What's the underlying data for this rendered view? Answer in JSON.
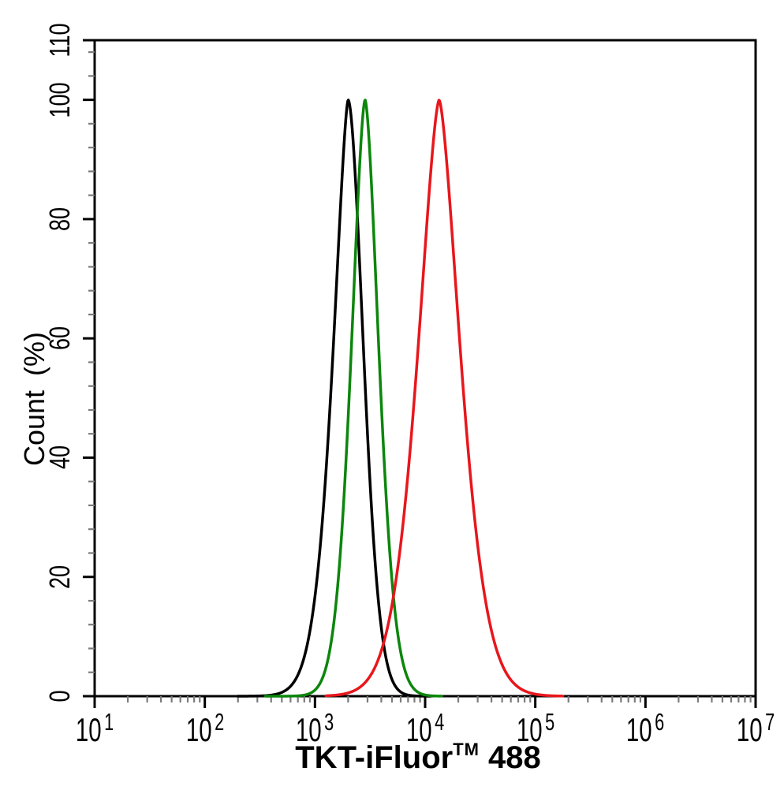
{
  "figure": {
    "background": "#ffffff"
  },
  "chart_data": {
    "type": "line",
    "variant": "flow-cytometry-histogram-overlay",
    "title": "",
    "xlabel": "TKT-iFluor™ 488",
    "xlabel_parts": {
      "main": "TKT-iFluor",
      "tm": "TM",
      "suffix": "488"
    },
    "ylabel": "Count (%)",
    "x_scale": "log10",
    "x_tick_base": "10",
    "x_ticks_exponents": [
      1,
      2,
      3,
      4,
      5,
      6,
      7
    ],
    "xlim": [
      10,
      10000000
    ],
    "y_ticks": [
      0,
      20,
      40,
      60,
      80,
      100,
      110
    ],
    "y_minor_step": 4,
    "ylim": [
      0,
      110
    ],
    "grid": false,
    "legend": "none",
    "axis_color": "#000000",
    "minor_tick_color": "#7b7b7b",
    "series": [
      {
        "name": "black-curve",
        "color": "#000000",
        "peak_x": 2000,
        "peak_y": 100,
        "fwhm_decades": 0.32,
        "shape_left_exp": 1.5,
        "shape_right_exp": 1.8,
        "span_log10": [
          2.3,
          4.05
        ]
      },
      {
        "name": "green-curve",
        "color": "#0c860c",
        "peak_x": 2850,
        "peak_y": 100,
        "fwhm_decades": 0.29,
        "shape_left_exp": 1.65,
        "shape_right_exp": 1.65,
        "span_log10": [
          2.55,
          4.15
        ]
      },
      {
        "name": "red-curve",
        "color": "#e8161c",
        "peak_x": 13400,
        "peak_y": 100,
        "fwhm_decades": 0.45,
        "shape_left_exp": 1.55,
        "shape_right_exp": 1.55,
        "span_log10": [
          3.1,
          5.25
        ]
      }
    ]
  }
}
